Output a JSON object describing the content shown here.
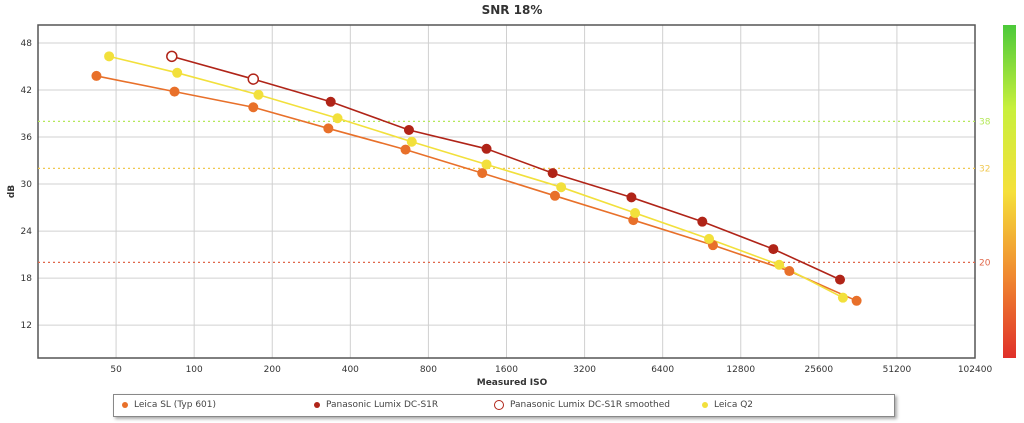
{
  "chart_data": {
    "type": "line",
    "title": "SNR 18%",
    "xlabel": "Measured ISO",
    "ylabel": "dB",
    "xscale": "log2",
    "xlim": [
      25,
      102400
    ],
    "ylim": [
      7.8,
      50.3
    ],
    "xticks": [
      50,
      100,
      200,
      400,
      800,
      1600,
      3200,
      6400,
      12800,
      25600,
      51200,
      102400
    ],
    "yticks": [
      12,
      18,
      24,
      30,
      36,
      42,
      48
    ],
    "grid": true,
    "legend_position": "bottom",
    "reference_lines": [
      {
        "value": 38,
        "label": "38",
        "color": "#b5e85a"
      },
      {
        "value": 32,
        "label": "32",
        "color": "#f0c850"
      },
      {
        "value": 20,
        "label": "20",
        "color": "#e0674a"
      }
    ],
    "colorbar": {
      "colors": [
        "#4cc93a",
        "#c8f03c",
        "#f5e03a",
        "#f08a30",
        "#e0302a"
      ]
    },
    "series": [
      {
        "name": "Leica SL (Typ 601)",
        "color": "#e8702a",
        "marker": "filled",
        "x": [
          42,
          84,
          169,
          329,
          653,
          1290,
          2460,
          4930,
          10000,
          19700,
          35800
        ],
        "y": [
          43.8,
          41.8,
          39.8,
          37.1,
          34.4,
          31.4,
          28.5,
          25.4,
          22.2,
          18.9,
          15.1
        ]
      },
      {
        "name": "Panasonic Lumix DC-S1R",
        "color": "#b02418",
        "marker": "filled",
        "x": [
          336,
          673,
          1340,
          2410,
          4850,
          9100,
          17100,
          30900
        ],
        "y": [
          40.5,
          36.9,
          34.5,
          31.4,
          28.3,
          25.2,
          21.7,
          17.8
        ]
      },
      {
        "name": "Panasonic Lumix DC-S1R smoothed",
        "color": "#b02418",
        "marker": "open",
        "x": [
          82,
          169
        ],
        "y": [
          46.3,
          43.4
        ]
      },
      {
        "name": "Leica Q2",
        "color": "#f2e03c",
        "marker": "filled",
        "x": [
          47,
          86,
          177,
          357,
          690,
          1340,
          2600,
          5010,
          9660,
          18000,
          31700
        ],
        "y": [
          46.3,
          44.2,
          41.4,
          38.4,
          35.4,
          32.5,
          29.6,
          26.3,
          23.0,
          19.7,
          15.5
        ]
      }
    ]
  }
}
